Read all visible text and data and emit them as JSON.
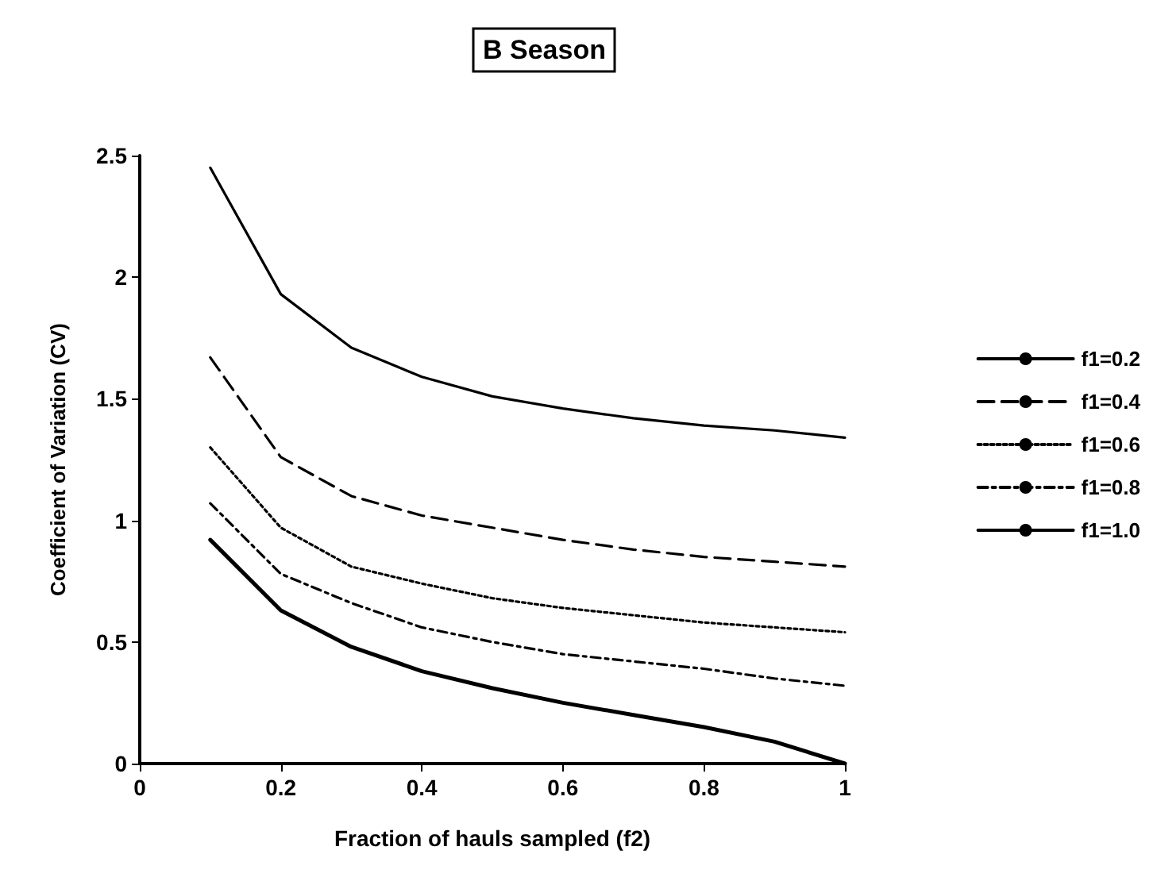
{
  "chart_data": {
    "type": "line",
    "title": "B Season",
    "xlabel": "Fraction of hauls sampled (f2)",
    "ylabel": "Coefficient of Variation (CV)",
    "x": [
      0.1,
      0.2,
      0.3,
      0.4,
      0.5,
      0.6,
      0.7,
      0.8,
      0.9,
      1.0
    ],
    "series": [
      {
        "name": "f1=0.2",
        "color": "#000000",
        "line_style": "solid",
        "values": [
          2.45,
          1.93,
          1.71,
          1.59,
          1.51,
          1.46,
          1.42,
          1.39,
          1.37,
          1.34
        ]
      },
      {
        "name": "f1=0.4",
        "color": "#000000",
        "line_style": "dashed",
        "values": [
          1.67,
          1.26,
          1.1,
          1.02,
          0.97,
          0.92,
          0.88,
          0.85,
          0.83,
          0.81
        ]
      },
      {
        "name": "f1=0.6",
        "color": "#000000",
        "line_style": "dotted",
        "values": [
          1.3,
          0.97,
          0.81,
          0.74,
          0.68,
          0.64,
          0.61,
          0.58,
          0.56,
          0.54
        ]
      },
      {
        "name": "f1=0.8",
        "color": "#000000",
        "line_style": "dashdot",
        "values": [
          1.07,
          0.78,
          0.66,
          0.56,
          0.5,
          0.45,
          0.42,
          0.39,
          0.35,
          0.32
        ]
      },
      {
        "name": "f1=1.0",
        "color": "#000000",
        "line_style": "solid",
        "values": [
          0.92,
          0.63,
          0.48,
          0.38,
          0.31,
          0.25,
          0.2,
          0.15,
          0.09,
          0.0
        ]
      }
    ],
    "xlim": [
      0,
      1
    ],
    "xticks": [
      0,
      0.2,
      0.4,
      0.6,
      0.8,
      1
    ],
    "ylim": [
      0,
      2.5
    ],
    "yticks": [
      0,
      0.5,
      1,
      1.5,
      2,
      2.5
    ],
    "grid": false,
    "legend": "right",
    "marker": "none"
  }
}
